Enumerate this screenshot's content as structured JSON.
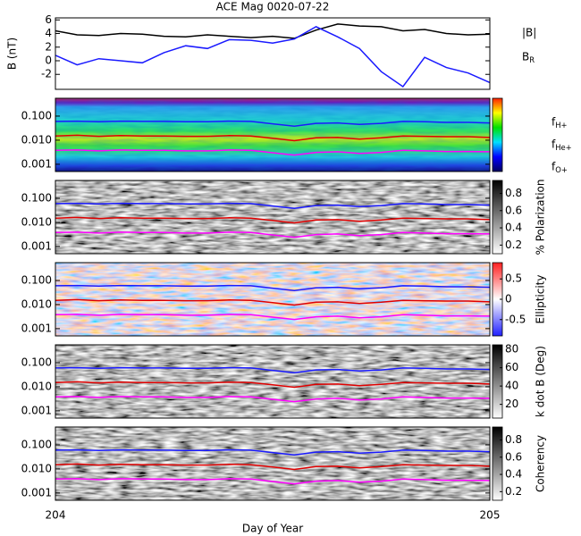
{
  "chart_data": [
    {
      "type": "line",
      "title": "ACE Mag 0020-07-22",
      "ylabel": "B (nT)",
      "x": [
        204,
        204.05,
        204.1,
        204.15,
        204.2,
        204.25,
        204.3,
        204.35,
        204.4,
        204.45,
        204.5,
        204.55,
        204.6,
        204.65,
        204.7,
        204.75,
        204.8,
        204.85,
        204.9,
        204.95,
        205
      ],
      "xlim": [
        204,
        205
      ],
      "ylim": [
        -4.2,
        6.3
      ],
      "yticks": [
        -2,
        0,
        2,
        4,
        6
      ],
      "series": [
        {
          "name": "|B|",
          "color": "#000000",
          "values": [
            4.4,
            3.8,
            3.7,
            4.0,
            3.9,
            3.6,
            3.5,
            3.8,
            3.6,
            3.4,
            3.6,
            3.3,
            4.5,
            5.4,
            5.1,
            5.0,
            4.4,
            4.6,
            4.0,
            3.8,
            3.9
          ]
        },
        {
          "name": "B_R",
          "color": "#1a1aff",
          "values": [
            0.8,
            -0.6,
            0.3,
            0.0,
            -0.3,
            1.2,
            2.2,
            1.8,
            3.1,
            3.0,
            2.6,
            3.2,
            5.0,
            3.5,
            1.8,
            -1.6,
            -3.8,
            0.5,
            -1.0,
            -1.8,
            -3.2
          ]
        }
      ]
    },
    {
      "type": "spectrogram",
      "colormap": "rainbow",
      "yscale": "log",
      "x": [
        204,
        204.05,
        204.1,
        204.15,
        204.2,
        204.25,
        204.3,
        204.35,
        204.4,
        204.45,
        204.5,
        204.55,
        204.6,
        204.65,
        204.7,
        204.75,
        204.8,
        204.85,
        204.9,
        204.95,
        205
      ],
      "xlim": [
        204,
        205
      ],
      "ylim": [
        0.0005,
        0.55
      ],
      "yticks": [
        {
          "value": 0.1,
          "label": "0.100"
        },
        {
          "value": 0.01,
          "label": "0.010"
        },
        {
          "value": 0.001,
          "label": "0.001"
        }
      ],
      "series": [
        {
          "name": "f_H+",
          "color": "#1a1aff",
          "values": [
            0.06,
            0.062,
            0.058,
            0.062,
            0.06,
            0.06,
            0.058,
            0.058,
            0.062,
            0.06,
            0.048,
            0.038,
            0.05,
            0.052,
            0.045,
            0.05,
            0.06,
            0.058,
            0.055,
            0.055,
            0.052
          ]
        },
        {
          "name": "f_He+",
          "color": "#e00000",
          "values": [
            0.015,
            0.016,
            0.0145,
            0.0155,
            0.015,
            0.015,
            0.0145,
            0.0145,
            0.0155,
            0.015,
            0.012,
            0.0095,
            0.0125,
            0.013,
            0.011,
            0.0125,
            0.015,
            0.0145,
            0.014,
            0.014,
            0.013
          ]
        },
        {
          "name": "f_O+",
          "color": "#ff00ff",
          "values": [
            0.0038,
            0.0039,
            0.0036,
            0.0039,
            0.0038,
            0.0038,
            0.0036,
            0.0036,
            0.0039,
            0.0038,
            0.003,
            0.0024,
            0.0031,
            0.0033,
            0.0028,
            0.0031,
            0.0038,
            0.0036,
            0.0034,
            0.0034,
            0.0033
          ]
        }
      ]
    },
    {
      "type": "spectrogram",
      "colormap": "gray",
      "yscale": "log",
      "clabel": "% Polarization",
      "clim": [
        0.1,
        0.95
      ],
      "cticks": [
        0.2,
        0.4,
        0.6,
        0.8
      ],
      "x": [
        204,
        204.05,
        204.1,
        204.15,
        204.2,
        204.25,
        204.3,
        204.35,
        204.4,
        204.45,
        204.5,
        204.55,
        204.6,
        204.65,
        204.7,
        204.75,
        204.8,
        204.85,
        204.9,
        204.95,
        205
      ],
      "xlim": [
        204,
        205
      ],
      "ylim": [
        0.0005,
        0.55
      ],
      "yticks": [
        {
          "value": 0.1,
          "label": "0.100"
        },
        {
          "value": 0.01,
          "label": "0.010"
        },
        {
          "value": 0.001,
          "label": "0.001"
        }
      ],
      "series": [
        {
          "color": "#1a1aff",
          "values": [
            0.06,
            0.062,
            0.058,
            0.062,
            0.06,
            0.06,
            0.058,
            0.058,
            0.062,
            0.06,
            0.048,
            0.038,
            0.05,
            0.052,
            0.045,
            0.05,
            0.06,
            0.058,
            0.055,
            0.055,
            0.052
          ]
        },
        {
          "color": "#e00000",
          "values": [
            0.015,
            0.016,
            0.0145,
            0.0155,
            0.015,
            0.015,
            0.0145,
            0.0145,
            0.0155,
            0.015,
            0.012,
            0.0095,
            0.0125,
            0.013,
            0.011,
            0.0125,
            0.015,
            0.0145,
            0.014,
            0.014,
            0.013
          ]
        },
        {
          "color": "#ff00ff",
          "values": [
            0.0038,
            0.0039,
            0.0036,
            0.0039,
            0.0038,
            0.0038,
            0.0036,
            0.0036,
            0.0039,
            0.0038,
            0.003,
            0.0024,
            0.0031,
            0.0033,
            0.0028,
            0.0031,
            0.0038,
            0.0036,
            0.0034,
            0.0034,
            0.0033
          ]
        }
      ]
    },
    {
      "type": "spectrogram",
      "colormap": "bwr",
      "yscale": "log",
      "clabel": "Ellipticity",
      "clim": [
        -0.9,
        0.9
      ],
      "cticks": [
        0.5,
        0.0,
        -0.5
      ],
      "x": [
        204,
        204.05,
        204.1,
        204.15,
        204.2,
        204.25,
        204.3,
        204.35,
        204.4,
        204.45,
        204.5,
        204.55,
        204.6,
        204.65,
        204.7,
        204.75,
        204.8,
        204.85,
        204.9,
        204.95,
        205
      ],
      "xlim": [
        204,
        205
      ],
      "ylim": [
        0.0005,
        0.55
      ],
      "yticks": [
        {
          "value": 0.1,
          "label": "0.100"
        },
        {
          "value": 0.01,
          "label": "0.010"
        },
        {
          "value": 0.001,
          "label": "0.001"
        }
      ],
      "series": [
        {
          "color": "#1a1aff",
          "values": [
            0.06,
            0.062,
            0.058,
            0.062,
            0.06,
            0.06,
            0.058,
            0.058,
            0.062,
            0.06,
            0.048,
            0.038,
            0.05,
            0.052,
            0.045,
            0.05,
            0.06,
            0.058,
            0.055,
            0.055,
            0.052
          ]
        },
        {
          "color": "#e00000",
          "values": [
            0.015,
            0.016,
            0.0145,
            0.0155,
            0.015,
            0.015,
            0.0145,
            0.0145,
            0.0155,
            0.015,
            0.012,
            0.0095,
            0.0125,
            0.013,
            0.011,
            0.0125,
            0.015,
            0.0145,
            0.014,
            0.014,
            0.013
          ]
        },
        {
          "color": "#ff00ff",
          "values": [
            0.0038,
            0.0039,
            0.0036,
            0.0039,
            0.0038,
            0.0038,
            0.0036,
            0.0036,
            0.0039,
            0.0038,
            0.003,
            0.0024,
            0.0031,
            0.0033,
            0.0028,
            0.0031,
            0.0038,
            0.0036,
            0.0034,
            0.0034,
            0.0033
          ]
        }
      ]
    },
    {
      "type": "spectrogram",
      "colormap": "gray",
      "yscale": "log",
      "clabel": "k dot B (Deg)",
      "clim": [
        5,
        85
      ],
      "cticks": [
        20,
        40,
        60,
        80
      ],
      "x": [
        204,
        204.05,
        204.1,
        204.15,
        204.2,
        204.25,
        204.3,
        204.35,
        204.4,
        204.45,
        204.5,
        204.55,
        204.6,
        204.65,
        204.7,
        204.75,
        204.8,
        204.85,
        204.9,
        204.95,
        205
      ],
      "xlim": [
        204,
        205
      ],
      "ylim": [
        0.0005,
        0.55
      ],
      "yticks": [
        {
          "value": 0.1,
          "label": "0.100"
        },
        {
          "value": 0.01,
          "label": "0.010"
        },
        {
          "value": 0.001,
          "label": "0.001"
        }
      ],
      "series": [
        {
          "color": "#1a1aff",
          "values": [
            0.06,
            0.062,
            0.058,
            0.062,
            0.06,
            0.06,
            0.058,
            0.058,
            0.062,
            0.06,
            0.048,
            0.038,
            0.05,
            0.052,
            0.045,
            0.05,
            0.06,
            0.058,
            0.055,
            0.055,
            0.052
          ]
        },
        {
          "color": "#e00000",
          "values": [
            0.015,
            0.016,
            0.0145,
            0.0155,
            0.015,
            0.015,
            0.0145,
            0.0145,
            0.0155,
            0.015,
            0.012,
            0.0095,
            0.0125,
            0.013,
            0.011,
            0.0125,
            0.015,
            0.0145,
            0.014,
            0.014,
            0.013
          ]
        },
        {
          "color": "#ff00ff",
          "values": [
            0.0038,
            0.0039,
            0.0036,
            0.0039,
            0.0038,
            0.0038,
            0.0036,
            0.0036,
            0.0039,
            0.0038,
            0.003,
            0.0024,
            0.0031,
            0.0033,
            0.0028,
            0.0031,
            0.0038,
            0.0036,
            0.0034,
            0.0034,
            0.0033
          ]
        }
      ]
    },
    {
      "type": "spectrogram",
      "colormap": "gray",
      "yscale": "log",
      "clabel": "Coherency",
      "clim": [
        0.1,
        0.95
      ],
      "cticks": [
        0.2,
        0.4,
        0.6,
        0.8
      ],
      "x": [
        204,
        204.05,
        204.1,
        204.15,
        204.2,
        204.25,
        204.3,
        204.35,
        204.4,
        204.45,
        204.5,
        204.55,
        204.6,
        204.65,
        204.7,
        204.75,
        204.8,
        204.85,
        204.9,
        204.95,
        205
      ],
      "xlim": [
        204,
        205
      ],
      "ylim": [
        0.0005,
        0.55
      ],
      "xticks": [
        204,
        205
      ],
      "xlabel": "Day of Year",
      "yticks": [
        {
          "value": 0.1,
          "label": "0.100"
        },
        {
          "value": 0.01,
          "label": "0.010"
        },
        {
          "value": 0.001,
          "label": "0.001"
        }
      ],
      "series": [
        {
          "color": "#1a1aff",
          "values": [
            0.06,
            0.062,
            0.058,
            0.062,
            0.06,
            0.06,
            0.058,
            0.058,
            0.062,
            0.06,
            0.048,
            0.038,
            0.05,
            0.052,
            0.045,
            0.05,
            0.06,
            0.058,
            0.055,
            0.055,
            0.052
          ]
        },
        {
          "color": "#e00000",
          "values": [
            0.015,
            0.016,
            0.0145,
            0.0155,
            0.015,
            0.015,
            0.0145,
            0.0145,
            0.0155,
            0.015,
            0.012,
            0.0095,
            0.0125,
            0.013,
            0.011,
            0.0125,
            0.015,
            0.0145,
            0.014,
            0.014,
            0.013
          ]
        },
        {
          "color": "#ff00ff",
          "values": [
            0.0038,
            0.0039,
            0.0036,
            0.0039,
            0.0038,
            0.0038,
            0.0036,
            0.0036,
            0.0039,
            0.0038,
            0.003,
            0.0024,
            0.0031,
            0.0033,
            0.0028,
            0.0031,
            0.0038,
            0.0036,
            0.0034,
            0.0034,
            0.0033
          ]
        }
      ]
    }
  ]
}
